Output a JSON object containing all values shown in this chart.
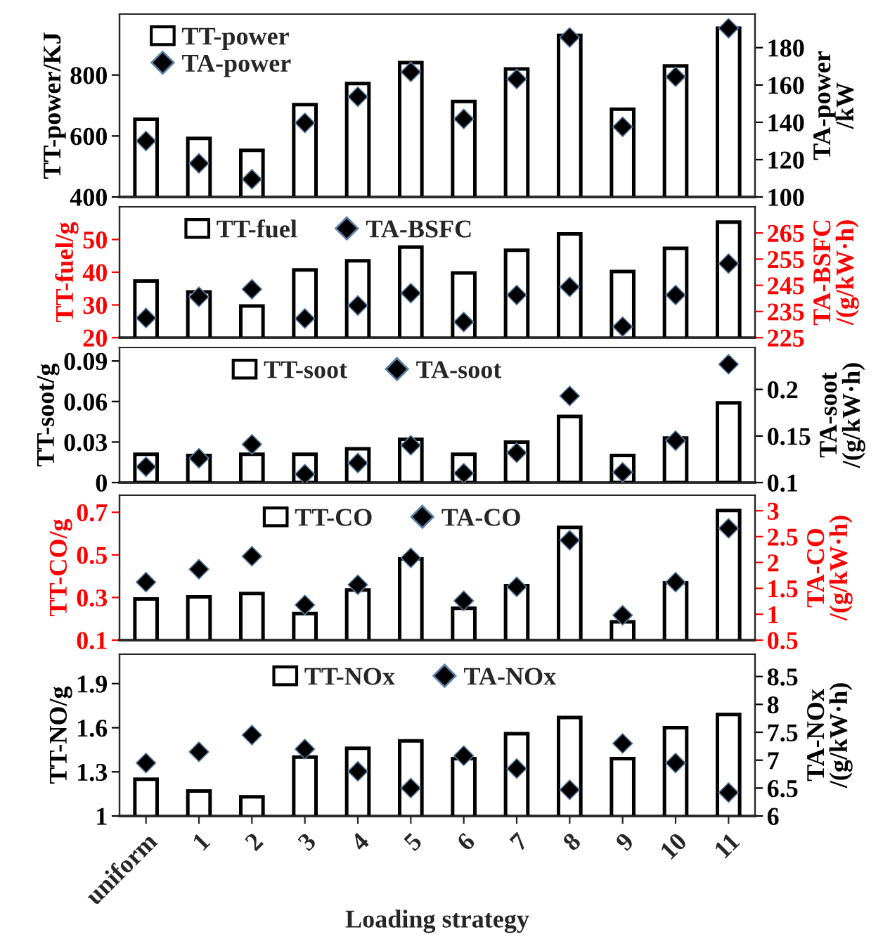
{
  "chart_data": [
    {
      "type": "bar",
      "categories": [
        null,
        null,
        null,
        null,
        null,
        null,
        null,
        null,
        null,
        null,
        null,
        null
      ],
      "ylabel": "TT-power/KJ",
      "y2label": "TA-power\n/kW",
      "ylim": [
        400,
        1000
      ],
      "yticks": [
        400,
        600,
        800
      ],
      "y2lim": [
        100,
        198
      ],
      "y2ticks": [
        100,
        120,
        140,
        160,
        180
      ],
      "legend": "top left",
      "tick_labels": "y",
      "marker": "diamond",
      "series": [
        {
          "name": "TT-power",
          "color": "#ffffff",
          "values": [
            655,
            592,
            553,
            703,
            772,
            841,
            713,
            820,
            930,
            688,
            830,
            954
          ]
        },
        {
          "name": "TA-power",
          "type": "scatter",
          "axis": "y2",
          "color": "#000000",
          "values": [
            130,
            118,
            109.5,
            139.7,
            153.7,
            167,
            141.8,
            163.2,
            185.5,
            137.6,
            164.4,
            190.4
          ]
        }
      ]
    },
    {
      "type": "bar",
      "categories": [
        null,
        null,
        null,
        null,
        null,
        null,
        null,
        null,
        null,
        null,
        null,
        null
      ],
      "ylabel": "TT-fuel/g",
      "y2label": "TA-BSFC\n/(g/kW·h)",
      "ylim": [
        20,
        60
      ],
      "yticks": [
        20,
        30,
        40,
        50
      ],
      "y2lim": [
        225,
        275
      ],
      "y2ticks": [
        225,
        235,
        245,
        255,
        265
      ],
      "legend": "top",
      "tick_labels": "y",
      "marker": "diamond",
      "series": [
        {
          "name": "TT-fuel",
          "color": "#ffffff",
          "values": [
            37.3,
            34,
            29.7,
            40.7,
            43.5,
            47.7,
            39.8,
            46.7,
            51.7,
            40.2,
            47.3,
            55.3
          ]
        },
        {
          "name": "TA-BSFC",
          "type": "scatter",
          "axis": "y2",
          "color": "#000000",
          "values": [
            232.5,
            240.6,
            243.5,
            232.3,
            237.3,
            242,
            231,
            241.3,
            244.4,
            229.2,
            241.3,
            253.3
          ]
        }
      ]
    },
    {
      "type": "bar",
      "categories": [
        null,
        null,
        null,
        null,
        null,
        null,
        null,
        null,
        null,
        null,
        null,
        null
      ],
      "ylabel": "TT-soot/g",
      "y2label": "TA-soot\n/(g/kW·h)",
      "ylim": [
        0,
        0.1
      ],
      "yticks": [
        0,
        0.03,
        0.06,
        0.09
      ],
      "y2lim": [
        0.1,
        0.245
      ],
      "y2ticks": [
        0.1,
        0.15,
        0.2
      ],
      "legend": "top",
      "tick_labels": "y",
      "marker": "diamond",
      "series": [
        {
          "name": "TT-soot",
          "color": "#ffffff",
          "values": [
            0.021,
            0.02,
            0.021,
            0.021,
            0.025,
            0.032,
            0.021,
            0.03,
            0.049,
            0.02,
            0.033,
            0.059
          ]
        },
        {
          "name": "TA-soot",
          "type": "scatter",
          "axis": "y2",
          "color": "#000000",
          "values": [
            0.117,
            0.126,
            0.141,
            0.109,
            0.121,
            0.14,
            0.11,
            0.132,
            0.193,
            0.111,
            0.145,
            0.227
          ]
        }
      ]
    },
    {
      "type": "bar",
      "categories": [
        null,
        null,
        null,
        null,
        null,
        null,
        null,
        null,
        null,
        null,
        null,
        null
      ],
      "ylabel": "TT-CO/g",
      "y2label": "TA-CO\n/(g/kW·h)",
      "ylim": [
        0.1,
        0.78
      ],
      "yticks": [
        0.1,
        0.3,
        0.5,
        0.7
      ],
      "y2lim": [
        0.5,
        3.3
      ],
      "y2ticks": [
        0.5,
        1,
        1.5,
        2,
        2.5,
        3
      ],
      "legend": "top",
      "tick_labels": "y",
      "marker": "diamond",
      "series": [
        {
          "name": "TT-CO",
          "color": "#ffffff",
          "values": [
            0.293,
            0.303,
            0.319,
            0.225,
            0.335,
            0.481,
            0.249,
            0.356,
            0.629,
            0.186,
            0.369,
            0.708
          ]
        },
        {
          "name": "TA-CO",
          "type": "scatter",
          "axis": "y2",
          "color": "#000000",
          "values": [
            1.62,
            1.87,
            2.12,
            1.18,
            1.57,
            2.09,
            1.26,
            1.53,
            2.43,
            0.98,
            1.62,
            2.66
          ]
        }
      ]
    },
    {
      "type": "bar",
      "categories": [
        "uniform",
        "1",
        "2",
        "3",
        "4",
        "5",
        "6",
        "7",
        "8",
        "9",
        "10",
        "11"
      ],
      "xlabel": "Loading strategy",
      "ylabel": "TT-NO/g",
      "y2label": "TA-NOx\n/(g/kW·h)",
      "ylim": [
        1,
        2.1
      ],
      "yticks": [
        1,
        1.3,
        1.6,
        1.9
      ],
      "y2lim": [
        6,
        8.9
      ],
      "y2ticks": [
        6,
        6.5,
        7,
        7.5,
        8,
        8.5
      ],
      "legend": "top",
      "marker": "diamond",
      "series": [
        {
          "name": "TT-NOx",
          "color": "#ffffff",
          "values": [
            1.25,
            1.17,
            1.13,
            1.4,
            1.46,
            1.51,
            1.39,
            1.56,
            1.67,
            1.39,
            1.6,
            1.69
          ]
        },
        {
          "name": "TA-NOx",
          "type": "scatter",
          "axis": "y2",
          "color": "#000000",
          "values": [
            6.95,
            7.15,
            7.45,
            7.2,
            6.8,
            6.5,
            7.08,
            6.85,
            6.47,
            7.3,
            6.95,
            6.42
          ]
        }
      ]
    }
  ]
}
